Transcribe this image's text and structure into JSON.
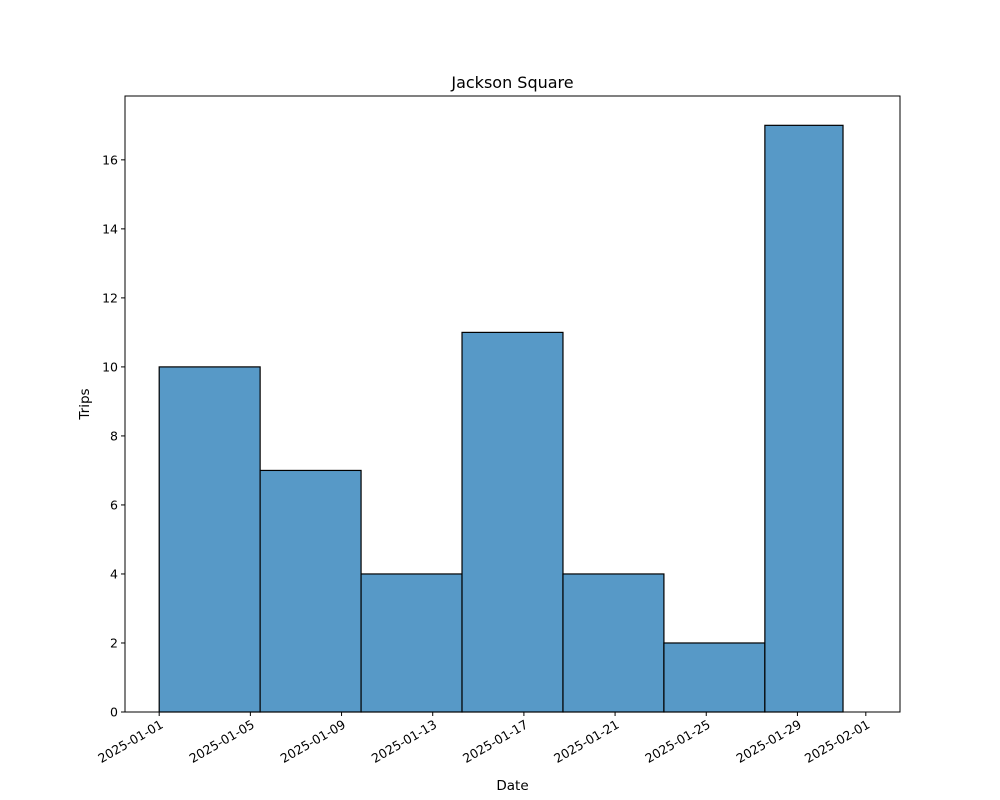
{
  "chart_data": {
    "type": "bar",
    "title": "Jackson Square",
    "xlabel": "Date",
    "ylabel": "Trips",
    "bins": [
      {
        "start": "2025-01-01",
        "end": "2025-01-05 10:17",
        "value": 10
      },
      {
        "start": "2025-01-05 10:17",
        "end": "2025-01-09 20:34",
        "value": 7
      },
      {
        "start": "2025-01-09 20:34",
        "end": "2025-01-14 06:51",
        "value": 4
      },
      {
        "start": "2025-01-14 06:51",
        "end": "2025-01-18 17:09",
        "value": 11
      },
      {
        "start": "2025-01-18 17:09",
        "end": "2025-01-23 03:26",
        "value": 4
      },
      {
        "start": "2025-01-23 03:26",
        "end": "2025-01-27 13:43",
        "value": 2
      },
      {
        "start": "2025-01-27 13:43",
        "end": "2025-01-31",
        "value": 17
      }
    ],
    "xlim": [
      "2024-12-30 12:00",
      "2025-02-02 12:00"
    ],
    "ylim": [
      0,
      17.85
    ],
    "xticks": [
      "2025-01-01",
      "2025-01-05",
      "2025-01-09",
      "2025-01-13",
      "2025-01-17",
      "2025-01-21",
      "2025-01-25",
      "2025-01-29",
      "2025-02-01"
    ],
    "yticks": [
      0,
      2,
      4,
      6,
      8,
      10,
      12,
      14,
      16
    ],
    "grid": false,
    "bar_color": "#5799c7",
    "edge_color": "#000000"
  }
}
